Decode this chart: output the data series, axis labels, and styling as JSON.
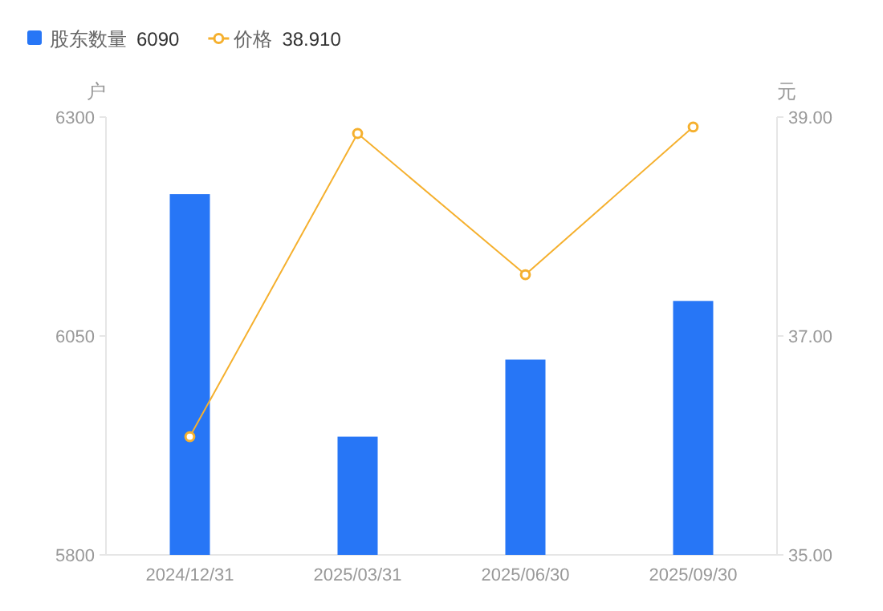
{
  "chart_data": {
    "type": "bar",
    "categories": [
      "2024/12/31",
      "2025/03/31",
      "2025/06/30",
      "2025/09/30"
    ],
    "series": [
      {
        "name": "股东数量",
        "color": "#2776f6",
        "values": [
          6212,
          5935,
          6023,
          6090
        ]
      },
      {
        "name": "价格",
        "type": "line",
        "axis": "y2",
        "color": "#f5b02e",
        "values": [
          36.08,
          38.85,
          37.56,
          38.91
        ]
      }
    ],
    "ylabel": "户",
    "y2label": "元",
    "ylim": [
      5800,
      6300
    ],
    "yticks": [
      5800,
      6050,
      6300
    ],
    "y2lim": [
      35,
      39
    ],
    "y2ticks": [
      {
        "value": 35,
        "label": "35.00"
      },
      {
        "value": 37,
        "label": "37.00"
      },
      {
        "value": 39,
        "label": "39.00"
      }
    ],
    "annotations": [
      "6090",
      "38.910"
    ],
    "legend": "top left",
    "marker": "circle",
    "line_style": "solid",
    "grid": false
  }
}
